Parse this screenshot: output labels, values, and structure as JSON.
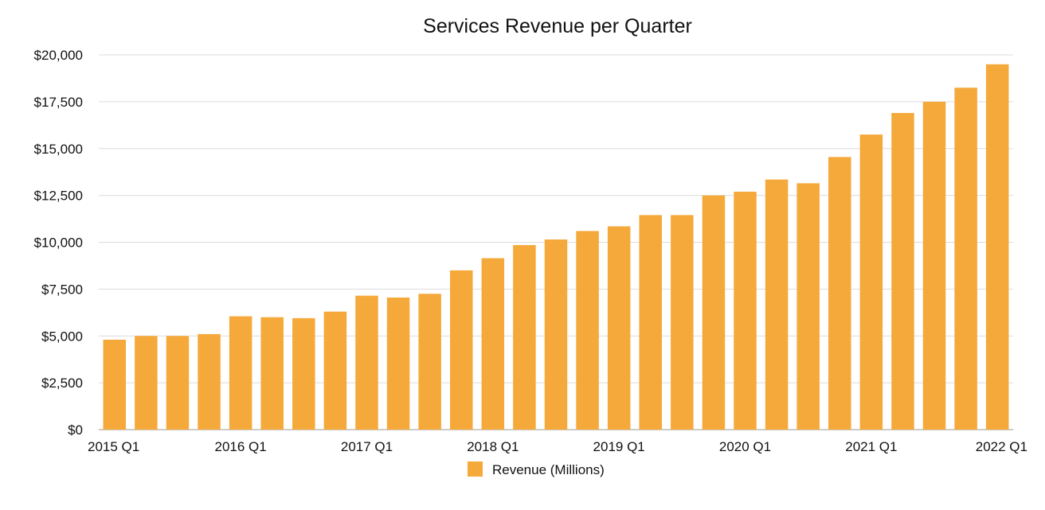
{
  "chart_data": {
    "type": "bar",
    "title": "Services Revenue per Quarter",
    "xlabel": "",
    "ylabel": "",
    "ylim": [
      0,
      20000
    ],
    "yticks": [
      0,
      2500,
      5000,
      7500,
      10000,
      12500,
      15000,
      17500,
      20000
    ],
    "ytick_labels": [
      "$0",
      "$2,500",
      "$5,000",
      "$7,500",
      "$10,000",
      "$12,500",
      "$15,000",
      "$17,500",
      "$20,000"
    ],
    "grid": true,
    "legend_position": "bottom-center",
    "bar_color": "#f6a93b",
    "categories": [
      "2015 Q1",
      "2015 Q2",
      "2015 Q3",
      "2015 Q4",
      "2016 Q1",
      "2016 Q2",
      "2016 Q3",
      "2016 Q4",
      "2017 Q1",
      "2017 Q2",
      "2017 Q3",
      "2017 Q4",
      "2018 Q1",
      "2018 Q2",
      "2018 Q3",
      "2018 Q4",
      "2019 Q1",
      "2019 Q2",
      "2019 Q3",
      "2019 Q4",
      "2020 Q1",
      "2020 Q2",
      "2020 Q3",
      "2020 Q4",
      "2021 Q1",
      "2021 Q2",
      "2021 Q3",
      "2021 Q4",
      "2022 Q1"
    ],
    "xtick_labels": [
      "2015 Q1",
      "2016 Q1",
      "2017 Q1",
      "2018 Q1",
      "2019 Q1",
      "2020 Q1",
      "2021 Q1",
      "2022 Q1"
    ],
    "xtick_indices": [
      0,
      4,
      8,
      12,
      16,
      20,
      24,
      28
    ],
    "series": [
      {
        "name": "Revenue (Millions)",
        "values": [
          4800,
          5000,
          5000,
          5100,
          6050,
          6000,
          5950,
          6300,
          7150,
          7050,
          7250,
          8500,
          9150,
          9850,
          10150,
          10600,
          10850,
          11450,
          11450,
          12500,
          12700,
          13350,
          13150,
          14550,
          15750,
          16900,
          17500,
          18250,
          19500
        ]
      }
    ]
  }
}
